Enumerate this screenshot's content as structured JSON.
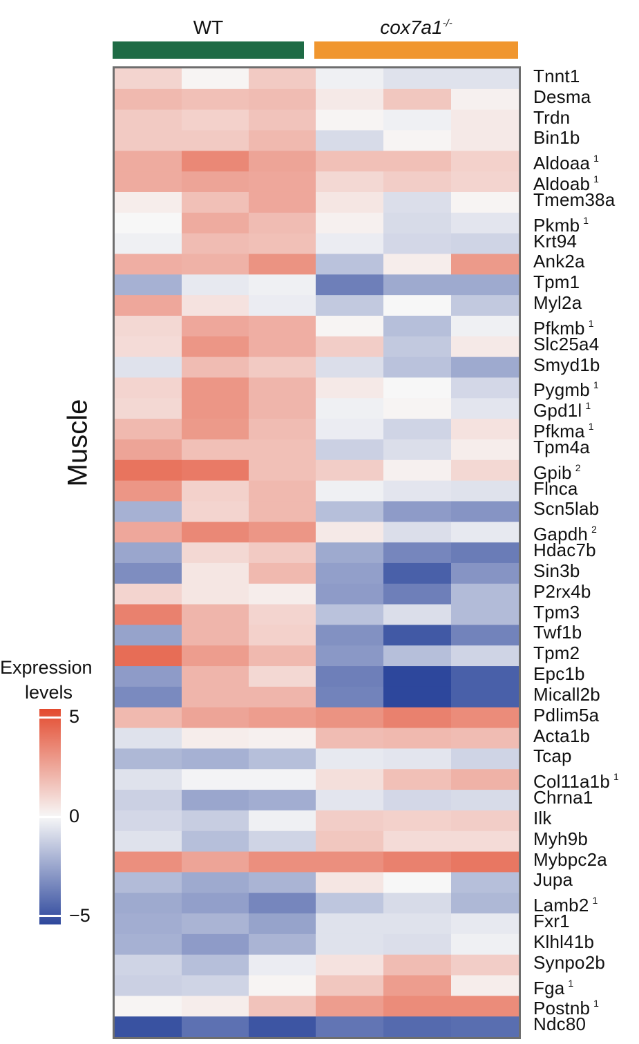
{
  "chart_data": {
    "type": "heatmap",
    "title": "",
    "column_groups": [
      {
        "name": "WT",
        "color": "#1e6b45",
        "columns": 3
      },
      {
        "name": "cox7a1",
        "superscript": "-/-",
        "color": "#f0962f",
        "columns": 3
      }
    ],
    "row_group_label": "Muscle",
    "legend": {
      "title_line1": "Expression",
      "title_line2": "levels",
      "min": -5,
      "max": 5,
      "ticks": [
        "5",
        "0",
        "−5"
      ],
      "low_color": "#2d479c",
      "mid_color": "#f7f7f7",
      "high_color": "#e34a2e"
    },
    "rows": [
      {
        "gene": "Tnnt1",
        "note": "",
        "values": [
          1.0,
          0.1,
          1.3,
          -0.2,
          -0.6,
          -0.6
        ]
      },
      {
        "gene": "Desma",
        "note": "",
        "values": [
          1.8,
          1.6,
          1.7,
          0.4,
          1.4,
          0.2
        ]
      },
      {
        "gene": "Trdn",
        "note": "",
        "values": [
          1.3,
          1.1,
          1.5,
          0.1,
          -0.2,
          0.4
        ]
      },
      {
        "gene": "Bin1b",
        "note": "",
        "values": [
          1.3,
          1.3,
          1.8,
          -0.8,
          0.1,
          0.4
        ]
      },
      {
        "gene": "Aldoaa",
        "note": "1",
        "values": [
          2.2,
          3.2,
          2.4,
          1.6,
          1.6,
          1.1
        ]
      },
      {
        "gene": "Aldoab",
        "note": "1",
        "values": [
          2.2,
          2.4,
          2.3,
          0.9,
          1.2,
          1.0
        ]
      },
      {
        "gene": "Tmem38a",
        "note": "",
        "values": [
          0.3,
          1.6,
          2.3,
          0.5,
          -0.7,
          0.1
        ]
      },
      {
        "gene": "Pkmb",
        "note": "1",
        "values": [
          0.0,
          2.2,
          1.7,
          0.2,
          -0.8,
          -0.5
        ]
      },
      {
        "gene": "Krt94",
        "note": "",
        "values": [
          -0.2,
          1.7,
          1.6,
          -0.3,
          -0.9,
          -1.0
        ]
      },
      {
        "gene": "Ank2a",
        "note": "",
        "values": [
          2.1,
          2.0,
          2.9,
          -1.5,
          0.3,
          2.7
        ]
      },
      {
        "gene": "Tpm1",
        "note": "",
        "values": [
          -2.0,
          -0.4,
          -0.2,
          -3.4,
          -2.2,
          -2.2
        ]
      },
      {
        "gene": "Myl2a",
        "note": "",
        "values": [
          2.3,
          0.6,
          -0.3,
          -1.3,
          0.0,
          -1.3
        ]
      },
      {
        "gene": "Pfkmb",
        "note": "1",
        "values": [
          0.9,
          2.3,
          2.1,
          0.1,
          -1.6,
          -0.2
        ]
      },
      {
        "gene": "Slc25a4",
        "note": "",
        "values": [
          0.8,
          2.8,
          2.1,
          1.2,
          -1.3,
          0.4
        ]
      },
      {
        "gene": "Smyd1b",
        "note": "",
        "values": [
          -0.6,
          1.7,
          1.3,
          -0.7,
          -1.5,
          -2.2
        ]
      },
      {
        "gene": "Pygmb",
        "note": "1",
        "values": [
          1.0,
          2.8,
          1.9,
          0.4,
          0.0,
          -0.9
        ]
      },
      {
        "gene": "Gpd1l",
        "note": "1",
        "values": [
          0.9,
          2.8,
          1.9,
          -0.2,
          0.1,
          -0.5
        ]
      },
      {
        "gene": "Pfkma",
        "note": "1",
        "values": [
          1.8,
          2.7,
          1.7,
          -0.3,
          -1.0,
          0.6
        ]
      },
      {
        "gene": "Tpm4a",
        "note": "",
        "values": [
          2.4,
          1.6,
          1.6,
          -1.1,
          -0.7,
          0.3
        ]
      },
      {
        "gene": "Gpib",
        "note": "2",
        "values": [
          3.8,
          3.6,
          1.6,
          1.2,
          0.2,
          0.9
        ]
      },
      {
        "gene": "Flnca",
        "note": "",
        "values": [
          2.8,
          1.1,
          1.8,
          -0.2,
          -0.5,
          -0.6
        ]
      },
      {
        "gene": "Scn5lab",
        "note": "",
        "values": [
          -2.0,
          1.0,
          1.8,
          -1.6,
          -2.6,
          -2.8
        ]
      },
      {
        "gene": "Gapdh",
        "note": "2",
        "values": [
          2.3,
          3.2,
          2.8,
          0.4,
          -0.7,
          -0.4
        ]
      },
      {
        "gene": "Hdac7b",
        "note": "",
        "values": [
          -2.3,
          0.9,
          1.3,
          -2.2,
          -3.2,
          -3.5
        ]
      },
      {
        "gene": "Sin3b",
        "note": "",
        "values": [
          -3.0,
          0.5,
          1.8,
          -2.5,
          -4.3,
          -2.8
        ]
      },
      {
        "gene": "P2rx4b",
        "note": "",
        "values": [
          1.0,
          0.5,
          0.3,
          -2.6,
          -3.4,
          -1.7
        ]
      },
      {
        "gene": "Tpm3",
        "note": "",
        "values": [
          3.4,
          1.9,
          1.0,
          -1.5,
          -0.7,
          -1.7
        ]
      },
      {
        "gene": "Twf1b",
        "note": "",
        "values": [
          -2.4,
          1.9,
          1.1,
          -2.9,
          -4.5,
          -3.3
        ]
      },
      {
        "gene": "Tpm2",
        "note": "",
        "values": [
          4.0,
          2.6,
          1.8,
          -2.7,
          -1.6,
          -1.0
        ]
      },
      {
        "gene": "Epc1b",
        "note": "",
        "values": [
          -2.6,
          1.9,
          0.9,
          -3.4,
          -5.0,
          -4.3
        ]
      },
      {
        "gene": "Micall2b",
        "note": "",
        "values": [
          -3.1,
          1.9,
          1.9,
          -3.3,
          -5.0,
          -4.3
        ]
      },
      {
        "gene": "Pdlim5a",
        "note": "",
        "values": [
          1.8,
          2.4,
          2.6,
          2.9,
          3.4,
          3.1
        ]
      },
      {
        "gene": "Acta1b",
        "note": "",
        "values": [
          -0.6,
          0.3,
          0.2,
          1.7,
          1.8,
          1.7
        ]
      },
      {
        "gene": "Tcap",
        "note": "",
        "values": [
          -1.8,
          -2.0,
          -1.6,
          -0.4,
          -0.5,
          -1.0
        ]
      },
      {
        "gene": "Col11a1b",
        "note": "1",
        "values": [
          -0.6,
          -0.1,
          -0.1,
          0.7,
          1.6,
          2.0
        ]
      },
      {
        "gene": "Chrna1",
        "note": "",
        "values": [
          -1.1,
          -2.3,
          -2.1,
          -0.5,
          -0.9,
          -0.8
        ]
      },
      {
        "gene": "Ilk",
        "note": "",
        "values": [
          -0.9,
          -1.2,
          -0.2,
          1.2,
          1.1,
          1.2
        ]
      },
      {
        "gene": "Myh9b",
        "note": "",
        "values": [
          -0.6,
          -1.6,
          -1.0,
          1.4,
          0.8,
          0.8
        ]
      },
      {
        "gene": "Mybpc2a",
        "note": "",
        "values": [
          3.0,
          2.4,
          3.0,
          3.0,
          3.4,
          3.7
        ]
      },
      {
        "gene": "Jupa",
        "note": "",
        "values": [
          -1.7,
          -2.2,
          -1.9,
          0.5,
          0.0,
          -1.6
        ]
      },
      {
        "gene": "Lamb2",
        "note": "1",
        "values": [
          -2.2,
          -2.5,
          -3.2,
          -1.4,
          -0.8,
          -1.8
        ]
      },
      {
        "gene": "Fxr1",
        "note": "",
        "values": [
          -2.1,
          -1.9,
          -2.4,
          -0.6,
          -0.6,
          -0.4
        ]
      },
      {
        "gene": "Klhl41b",
        "note": "",
        "values": [
          -2.0,
          -2.6,
          -1.9,
          -0.6,
          -0.7,
          -0.2
        ]
      },
      {
        "gene": "Synpo2b",
        "note": "",
        "values": [
          -1.0,
          -1.6,
          -0.3,
          0.6,
          1.7,
          1.2
        ]
      },
      {
        "gene": "Fga",
        "note": "1",
        "values": [
          -1.1,
          -1.0,
          0.1,
          1.4,
          2.6,
          0.3
        ]
      },
      {
        "gene": "Postnb",
        "note": "1",
        "values": [
          0.1,
          0.3,
          1.5,
          2.6,
          3.1,
          3.1
        ]
      },
      {
        "gene": "Ndc80",
        "note": "",
        "values": [
          -4.7,
          -3.8,
          -4.6,
          -3.7,
          -4.0,
          -3.9
        ]
      }
    ]
  }
}
